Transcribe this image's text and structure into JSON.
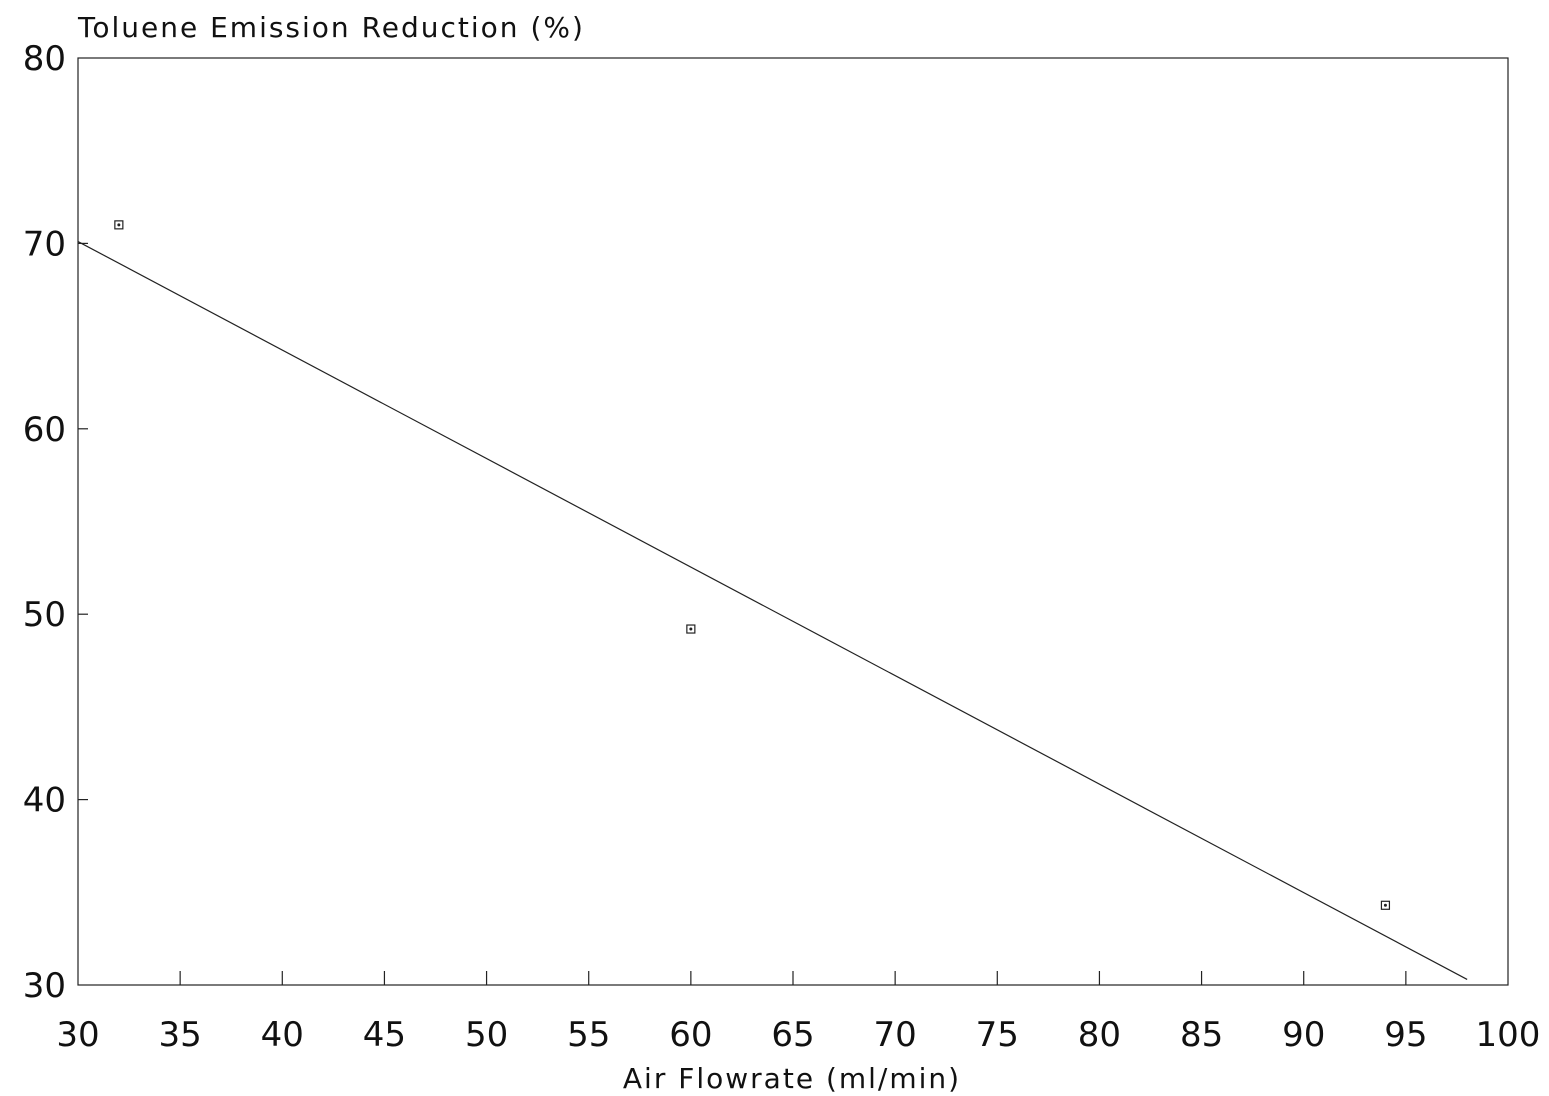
{
  "chart_data": {
    "type": "scatter",
    "ylabel": "Toluene Emission Reduction (%)",
    "xlabel": "Air Flowrate (ml/min)",
    "xlim": [
      30,
      100
    ],
    "ylim": [
      30,
      80
    ],
    "xticks": [
      30,
      35,
      40,
      45,
      50,
      55,
      60,
      65,
      70,
      75,
      80,
      85,
      90,
      95,
      100
    ],
    "yticks": [
      30,
      40,
      50,
      60,
      70,
      80
    ],
    "grid": false,
    "series": [
      {
        "type": "scatter",
        "marker": "square-dot",
        "points": [
          {
            "x": 32,
            "y": 71
          },
          {
            "x": 60,
            "y": 49.2
          },
          {
            "x": 94,
            "y": 34.3
          }
        ]
      },
      {
        "type": "line",
        "points": [
          {
            "x": 30,
            "y": 70.1
          },
          {
            "x": 98,
            "y": 30.3
          }
        ]
      }
    ]
  }
}
